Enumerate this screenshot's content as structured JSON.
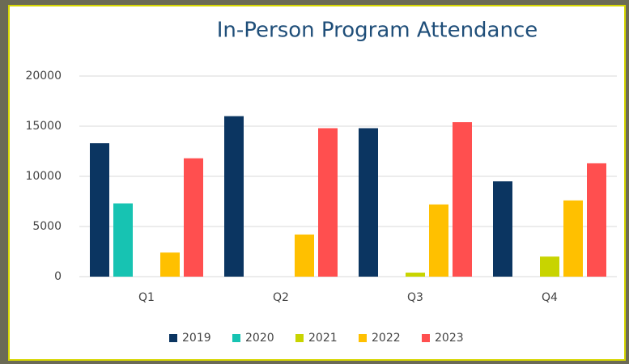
{
  "chart_data": {
    "type": "bar",
    "title": "In-Person Program Attendance",
    "categories": [
      "Q1",
      "Q2",
      "Q3",
      "Q4"
    ],
    "series": [
      {
        "name": "2019",
        "color": "#0b3561",
        "values": [
          13300,
          16000,
          14800,
          9500
        ]
      },
      {
        "name": "2020",
        "color": "#17c3b2",
        "values": [
          7300,
          0,
          0,
          0
        ]
      },
      {
        "name": "2021",
        "color": "#c8d400",
        "values": [
          0,
          0,
          400,
          2000
        ]
      },
      {
        "name": "2022",
        "color": "#ffc000",
        "values": [
          2400,
          4200,
          7200,
          7600
        ]
      },
      {
        "name": "2023",
        "color": "#ff4f4f",
        "values": [
          11800,
          14800,
          15400,
          11300
        ]
      }
    ],
    "ylim": [
      0,
      20000
    ],
    "yticks": [
      0,
      5000,
      10000,
      15000,
      20000
    ],
    "grid": true,
    "legend": "bottom"
  }
}
